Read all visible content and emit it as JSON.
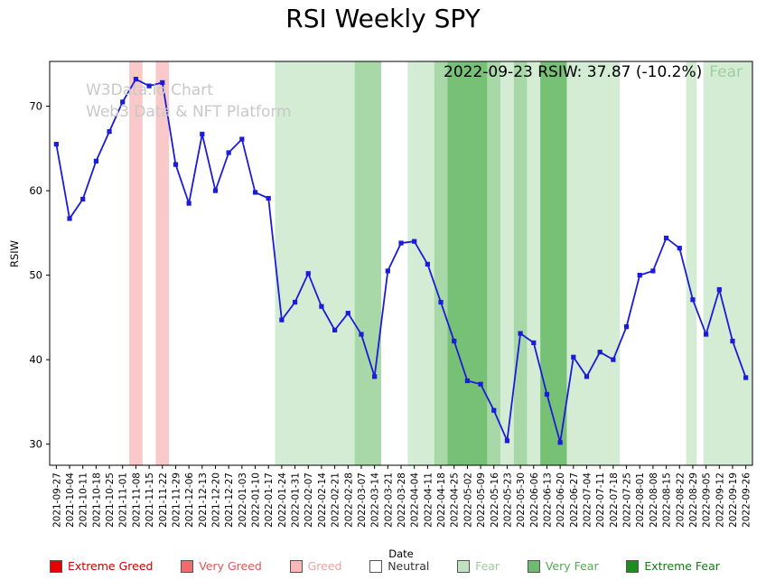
{
  "page": {
    "title": "RSI Weekly SPY"
  },
  "watermark": {
    "line1": "W3Data.io Chart",
    "line2": "Web3 Data & NFT Platform"
  },
  "annotation": {
    "text": "2022-09-23 RSIW: 37.87 (-10.2%)",
    "sentiment": "Fear",
    "sentiment_color": "#9fd09f"
  },
  "axes": {
    "ylabel": "RSIW",
    "xlabel": "Date",
    "yticks": [
      30,
      40,
      50,
      60,
      70
    ]
  },
  "chart_data": {
    "type": "line",
    "title": "RSI Weekly SPY",
    "xlabel": "Date",
    "ylabel": "RSIW",
    "ylim": [
      27.5,
      75.3
    ],
    "line_color": "#1b1bd8",
    "marker": "square",
    "x": [
      "2021-09-27",
      "2021-10-04",
      "2021-10-11",
      "2021-10-18",
      "2021-10-25",
      "2021-11-01",
      "2021-11-08",
      "2021-11-15",
      "2021-11-22",
      "2021-11-29",
      "2021-12-06",
      "2021-12-13",
      "2021-12-20",
      "2021-12-27",
      "2022-01-03",
      "2022-01-10",
      "2022-01-17",
      "2022-01-24",
      "2022-01-31",
      "2022-02-07",
      "2022-02-14",
      "2022-02-21",
      "2022-02-28",
      "2022-03-07",
      "2022-03-14",
      "2022-03-21",
      "2022-03-28",
      "2022-04-04",
      "2022-04-11",
      "2022-04-18",
      "2022-04-25",
      "2022-05-02",
      "2022-05-09",
      "2022-05-16",
      "2022-05-23",
      "2022-05-30",
      "2022-06-06",
      "2022-06-13",
      "2022-06-20",
      "2022-06-27",
      "2022-07-04",
      "2022-07-11",
      "2022-07-18",
      "2022-07-25",
      "2022-08-01",
      "2022-08-08",
      "2022-08-15",
      "2022-08-22",
      "2022-08-29",
      "2022-09-05",
      "2022-09-12",
      "2022-09-19",
      "2022-09-26"
    ],
    "y": [
      65.5,
      56.7,
      59.0,
      63.5,
      67.0,
      70.5,
      73.2,
      72.4,
      72.8,
      63.1,
      58.5,
      66.7,
      60.0,
      64.5,
      66.1,
      59.8,
      59.1,
      44.7,
      46.8,
      50.2,
      46.3,
      43.5,
      45.5,
      43.0,
      38.0,
      50.5,
      53.8,
      54.0,
      51.3,
      46.8,
      42.2,
      37.5,
      37.1,
      34.0,
      30.4,
      43.1,
      42.0,
      35.9,
      30.2,
      40.3,
      38.0,
      40.9,
      40.0,
      43.9,
      50.0,
      50.5,
      54.4,
      53.2,
      47.1,
      43.0,
      48.3,
      42.2,
      37.87
    ],
    "band_colors": {
      "greed": "#f9c9c9",
      "fear": "#d4ebd4",
      "very_fear": "#a8d8a8",
      "extreme_fear": "#77c177"
    },
    "bands": [
      {
        "from": 5.5,
        "to": 6.5,
        "level": "greed"
      },
      {
        "from": 7.5,
        "to": 8.5,
        "level": "greed"
      },
      {
        "from": 16.5,
        "to": 22.5,
        "level": "fear"
      },
      {
        "from": 22.5,
        "to": 24.5,
        "level": "very_fear"
      },
      {
        "from": 26.5,
        "to": 28.5,
        "level": "fear"
      },
      {
        "from": 28.5,
        "to": 29.5,
        "level": "very_fear"
      },
      {
        "from": 29.5,
        "to": 32.5,
        "level": "extreme_fear"
      },
      {
        "from": 32.5,
        "to": 33.5,
        "level": "very_fear"
      },
      {
        "from": 33.5,
        "to": 34.5,
        "level": "fear"
      },
      {
        "from": 34.5,
        "to": 35.5,
        "level": "very_fear"
      },
      {
        "from": 35.5,
        "to": 36.5,
        "level": "fear"
      },
      {
        "from": 36.5,
        "to": 38.5,
        "level": "extreme_fear"
      },
      {
        "from": 38.5,
        "to": 42.5,
        "level": "fear"
      },
      {
        "from": 47.5,
        "to": 48.3,
        "level": "fear"
      },
      {
        "from": 48.8,
        "to": 52.5,
        "level": "fear"
      }
    ]
  },
  "legend": {
    "items": [
      {
        "label": "Extreme Greed",
        "color": "#e60000",
        "text_color": "#cc0000"
      },
      {
        "label": "Very Greed",
        "color": "#f26a6a",
        "text_color": "#e05555"
      },
      {
        "label": "Greed",
        "color": "#f8b8b8",
        "text_color": "#eda3a3"
      },
      {
        "label": "Neutral",
        "color": "#ffffff",
        "text_color": "#333333"
      },
      {
        "label": "Fear",
        "color": "#bfe3bf",
        "text_color": "#9ccd9c"
      },
      {
        "label": "Very Fear",
        "color": "#6dbb6d",
        "text_color": "#55a555"
      },
      {
        "label": "Extreme Fear",
        "color": "#1e8c1e",
        "text_color": "#157815"
      }
    ]
  }
}
